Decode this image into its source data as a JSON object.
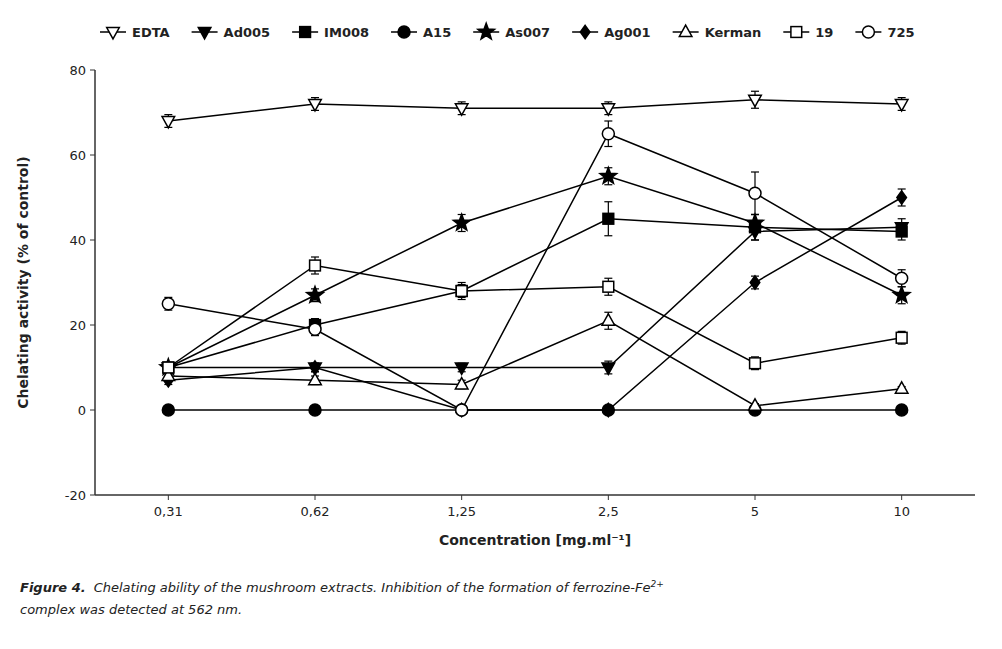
{
  "chart_data": {
    "type": "line",
    "categories": [
      "0,31",
      "0,62",
      "1,25",
      "2,5",
      "5",
      "10"
    ],
    "x_label": "Concentration [mg.ml⁻¹]",
    "y_label": "Chelating activity (% of control)",
    "ylim": [
      -20,
      80
    ],
    "yticks": [
      -20,
      0,
      20,
      40,
      60,
      80
    ],
    "grid": false,
    "legend": "top",
    "series": [
      {
        "name": "EDTA",
        "color": "black",
        "marker": "triangle-down-open",
        "line_style": "solid",
        "values": [
          68,
          72,
          71,
          71,
          73,
          72
        ],
        "errors": [
          1.5,
          1.5,
          1.5,
          1.5,
          2.0,
          1.5
        ]
      },
      {
        "name": "Ad005",
        "color": "black",
        "marker": "triangle-down",
        "line_style": "solid",
        "values": [
          10,
          10,
          10,
          10,
          42,
          43
        ],
        "errors": [
          1.0,
          1.0,
          1.0,
          1.5,
          2.0,
          2.0
        ]
      },
      {
        "name": "IM008",
        "color": "black",
        "marker": "square",
        "line_style": "solid",
        "values": [
          10,
          20,
          28,
          45,
          43,
          42
        ],
        "errors": [
          1.0,
          1.5,
          1.5,
          4.0,
          3.0,
          2.0
        ]
      },
      {
        "name": "A15",
        "color": "black",
        "marker": "circle",
        "line_style": "solid",
        "values": [
          0,
          0,
          0,
          0,
          0,
          0
        ],
        "errors": [
          0.3,
          0.3,
          0.3,
          0.3,
          0.3,
          0.3
        ]
      },
      {
        "name": "As007",
        "color": "black",
        "marker": "star",
        "line_style": "solid",
        "values": [
          10,
          27,
          44,
          55,
          44,
          27
        ],
        "errors": [
          1.0,
          1.5,
          2.0,
          2.0,
          2.0,
          2.0
        ]
      },
      {
        "name": "Ag001",
        "color": "black",
        "marker": "diamond",
        "line_style": "solid",
        "values": [
          7,
          10,
          0,
          0,
          30,
          50
        ],
        "errors": [
          1.0,
          1.0,
          0.3,
          0.3,
          1.5,
          2.0
        ]
      },
      {
        "name": "Kerman",
        "color": "black",
        "marker": "triangle-up-open",
        "line_style": "solid",
        "values": [
          8,
          7,
          6,
          21,
          1,
          5
        ],
        "errors": [
          1.0,
          1.0,
          1.0,
          2.0,
          0.5,
          0.5
        ]
      },
      {
        "name": "19",
        "color": "black",
        "marker": "square-open",
        "line_style": "solid",
        "values": [
          10,
          34,
          28,
          29,
          11,
          17
        ],
        "errors": [
          1.0,
          2.0,
          2.0,
          2.0,
          1.5,
          1.5
        ]
      },
      {
        "name": "725",
        "color": "black",
        "marker": "circle-open",
        "line_style": "solid",
        "values": [
          25,
          19,
          0,
          65,
          51,
          31
        ],
        "errors": [
          1.5,
          1.5,
          0.3,
          3.0,
          5.0,
          2.0
        ]
      }
    ],
    "annotations": [
      "Figure 4.",
      "Chelating ability of the mushroom extracts. Inhibition of the formation of ferrozine-Fe",
      "2+",
      "complex was detected at 562 nm."
    ]
  }
}
